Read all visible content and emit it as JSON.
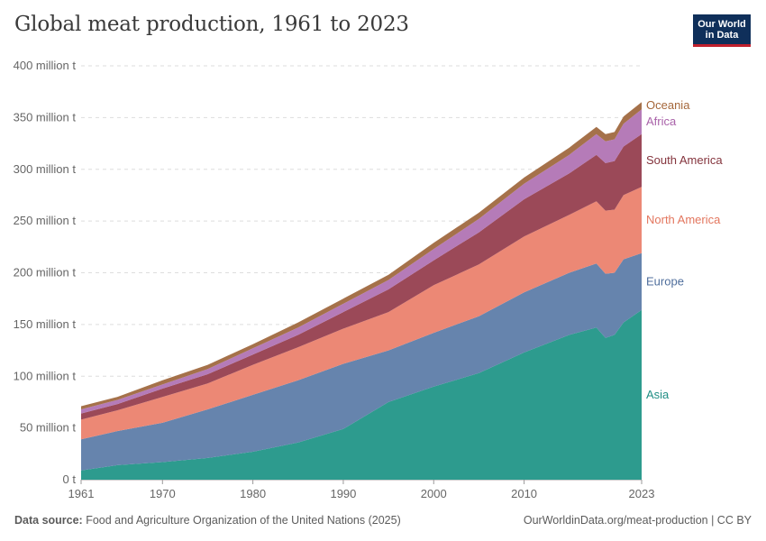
{
  "header": {
    "title": "Global meat production, 1961 to 2023",
    "logo_line1": "Our World",
    "logo_line2": "in Data"
  },
  "footer": {
    "source_label": "Data source:",
    "source_text": "Food and Agriculture Organization of the United Nations (2025)",
    "right_text": "OurWorldinData.org/meat-production | CC BY"
  },
  "chart_data": {
    "type": "area",
    "stacked": true,
    "title": "Global meat production, 1961 to 2023",
    "xlabel": "",
    "ylabel": "",
    "ylim": [
      0,
      400
    ],
    "xlim": [
      1961,
      2023
    ],
    "y_unit": "million t",
    "grid": "horizontal dashed",
    "legend": "labels at right end of series",
    "x_ticks": [
      "1961",
      "1970",
      "1980",
      "1990",
      "2000",
      "2010",
      "2023"
    ],
    "y_ticks": [
      "0 t",
      "50 million t",
      "100 million t",
      "150 million t",
      "200 million t",
      "250 million t",
      "300 million t",
      "350 million t",
      "400 million t"
    ],
    "x": [
      1961,
      1965,
      1970,
      1975,
      1980,
      1985,
      1990,
      1995,
      2000,
      2005,
      2010,
      2015,
      2018,
      2019,
      2020,
      2021,
      2023
    ],
    "series": [
      {
        "name": "Asia",
        "color": "#2d9b8e",
        "values": [
          9,
          14,
          17,
          21,
          27,
          36,
          49,
          75,
          90,
          103,
          123,
          140,
          147,
          137,
          140,
          152,
          164
        ]
      },
      {
        "name": "Europe",
        "color": "#6684ad",
        "values": [
          30,
          33,
          38,
          47,
          55,
          60,
          63,
          50,
          52,
          55,
          58,
          60,
          62,
          62,
          60,
          61,
          55
        ]
      },
      {
        "name": "North America",
        "color": "#ec8875",
        "values": [
          19,
          20,
          25,
          25,
          29,
          32,
          34,
          37,
          46,
          50,
          54,
          56,
          60,
          61,
          61,
          62,
          64
        ]
      },
      {
        "name": "South America",
        "color": "#9b4958",
        "values": [
          6,
          6,
          8,
          9,
          10,
          12,
          16,
          22,
          24,
          31,
          36,
          40,
          45,
          46,
          47,
          47,
          51
        ]
      },
      {
        "name": "Africa",
        "color": "#b57bb8",
        "values": [
          4,
          4,
          4,
          5,
          6,
          7,
          8,
          9,
          11,
          13,
          15,
          18,
          20,
          21,
          21,
          22,
          24
        ]
      },
      {
        "name": "Oceania",
        "color": "#a5714a",
        "values": [
          3,
          3,
          4,
          4,
          4,
          5,
          5,
          5,
          6,
          6,
          6,
          7,
          7,
          7,
          7,
          7,
          7
        ]
      }
    ],
    "label_colors": {
      "Oceania": "#a5673a",
      "Africa": "#a962a9",
      "South America": "#84343d",
      "North America": "#e3765e",
      "Europe": "#4f6e9c",
      "Asia": "#1f8e84"
    }
  }
}
